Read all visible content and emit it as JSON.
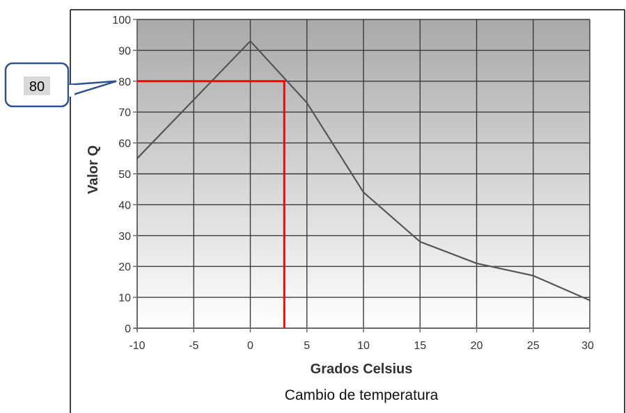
{
  "chart_data": {
    "type": "line",
    "xlabel": "Grados Celsius",
    "subtitle": "Cambio de temperatura",
    "ylabel": "Valor Q",
    "xlim": [
      -10,
      30
    ],
    "ylim": [
      0,
      100
    ],
    "x_ticks": [
      -10,
      -5,
      0,
      5,
      10,
      15,
      20,
      25,
      30
    ],
    "x_tick_labels": [
      "-10",
      "-5",
      "0",
      "5",
      "10",
      "15",
      "20",
      "25",
      "30"
    ],
    "y_ticks": [
      0,
      10,
      20,
      30,
      40,
      50,
      60,
      70,
      80,
      90,
      100
    ],
    "y_tick_labels": [
      "0",
      "10",
      "20",
      "30",
      "40",
      "50",
      "60",
      "70",
      "80",
      "90",
      "100"
    ],
    "grid": true,
    "series": [
      {
        "x": [
          -10,
          -5,
          0,
          5,
          10,
          15,
          20,
          25,
          30
        ],
        "y": [
          55,
          74,
          93,
          73,
          44,
          28,
          21,
          17,
          9
        ],
        "color": "#555555"
      }
    ],
    "annotation": {
      "label": "80",
      "x": 3,
      "y": 80,
      "color": "#ff0000",
      "callout_border": "#2f528f"
    },
    "background_gradient": [
      "#a9a9a9",
      "#ffffff"
    ]
  }
}
